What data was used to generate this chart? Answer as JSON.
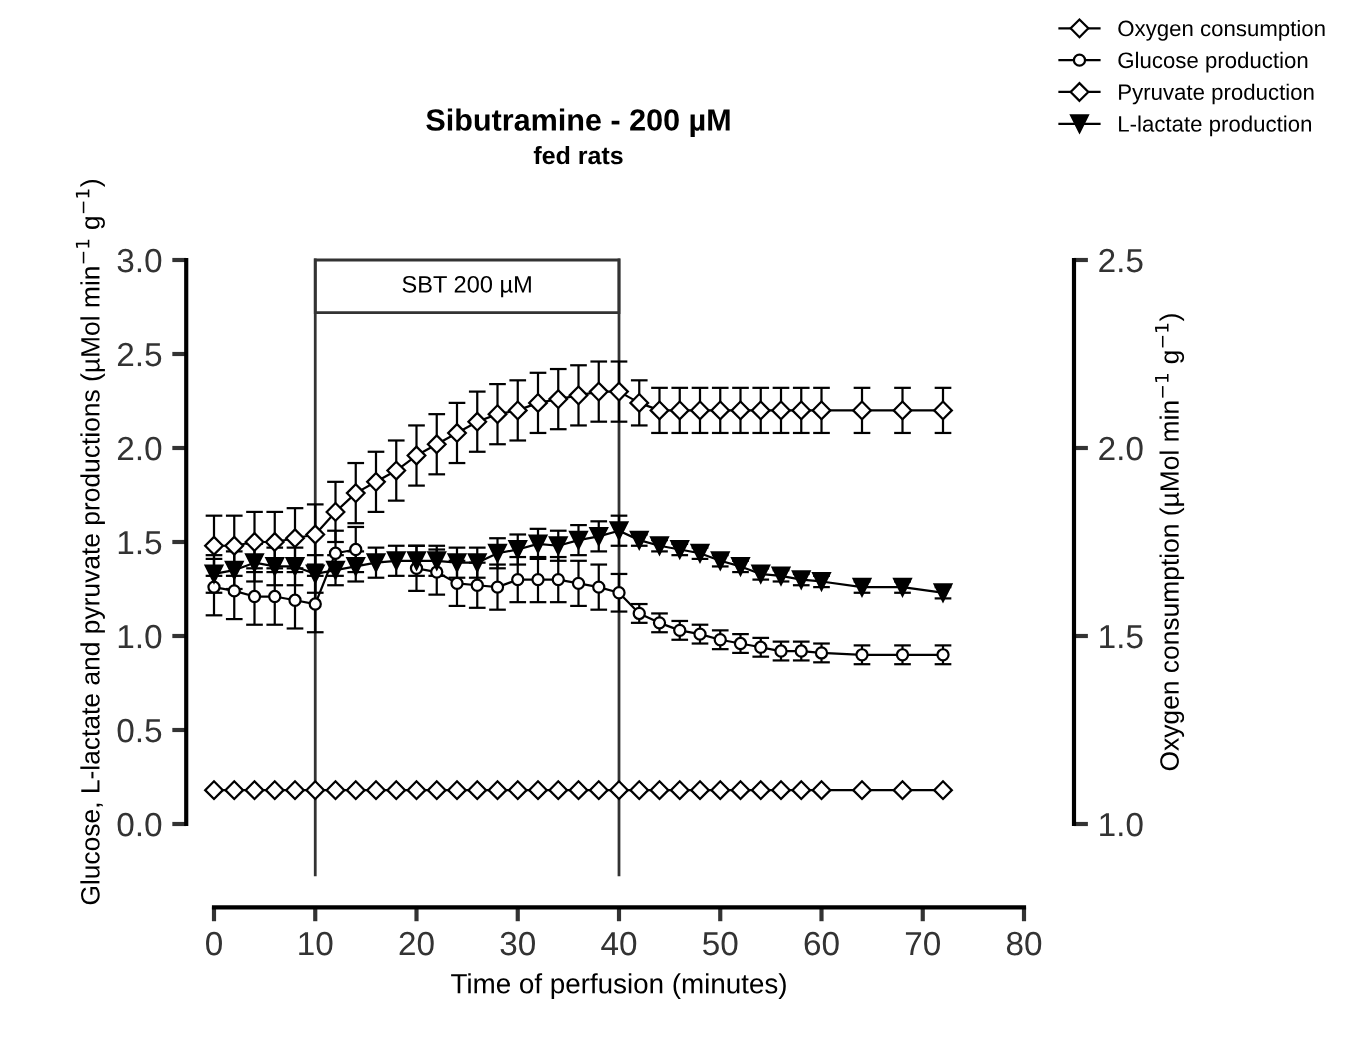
{
  "chart_data": {
    "type": "line",
    "title": "Sibutramine - 200 µM",
    "subtitle": "fed rats",
    "xlabel": "Time of perfusion (minutes)",
    "ylabel": "Glucose, L-lactate and pyruvate productions (µMol min$^{−1}$ g$^{−1}$)",
    "y2label": "Oxygen consumption (µMol min$^{−1}$ g$^{−1}$)",
    "x": [
      0,
      2,
      4,
      6,
      8,
      10,
      12,
      14,
      16,
      18,
      20,
      22,
      24,
      26,
      28,
      30,
      32,
      34,
      36,
      38,
      40,
      42,
      44,
      46,
      48,
      50,
      52,
      54,
      56,
      58,
      60,
      64,
      68,
      72
    ],
    "series": [
      {
        "name": "Oxygen consumption",
        "color": "#000000",
        "marker": "diamond",
        "axis": "y2",
        "values": [
          1.74,
          1.74,
          1.75,
          1.75,
          1.76,
          1.77,
          1.83,
          1.88,
          1.91,
          1.94,
          1.98,
          2.01,
          2.04,
          2.07,
          2.09,
          2.1,
          2.12,
          2.13,
          2.14,
          2.15,
          2.15,
          2.12,
          2.1,
          2.1,
          2.1,
          2.1,
          2.1,
          2.1,
          2.1,
          2.1,
          2.1,
          2.1,
          2.1,
          2.1
        ],
        "errors": [
          0.08,
          0.08,
          0.08,
          0.08,
          0.08,
          0.08,
          0.08,
          0.08,
          0.08,
          0.08,
          0.08,
          0.08,
          0.08,
          0.08,
          0.08,
          0.08,
          0.08,
          0.08,
          0.08,
          0.08,
          0.08,
          0.06,
          0.06,
          0.06,
          0.06,
          0.06,
          0.06,
          0.06,
          0.06,
          0.06,
          0.06,
          0.06,
          0.06,
          0.06
        ]
      },
      {
        "name": "Glucose production",
        "color": "#000000",
        "marker": "circle",
        "values": [
          1.26,
          1.24,
          1.21,
          1.21,
          1.19,
          1.17,
          1.44,
          1.46,
          null,
          null,
          1.36,
          1.34,
          1.28,
          1.27,
          1.26,
          1.3,
          1.3,
          1.3,
          1.28,
          1.26,
          1.23,
          1.12,
          1.07,
          1.03,
          1.01,
          0.98,
          0.96,
          0.94,
          0.92,
          0.92,
          0.91,
          0.9,
          0.9,
          0.9
        ],
        "errors": [
          0.15,
          0.15,
          0.15,
          0.15,
          0.15,
          0.15,
          0.12,
          0.12,
          null,
          null,
          0.12,
          0.12,
          0.12,
          0.12,
          0.12,
          0.12,
          0.12,
          0.12,
          0.12,
          0.12,
          0.1,
          0.05,
          0.05,
          0.05,
          0.05,
          0.05,
          0.05,
          0.05,
          0.05,
          0.05,
          0.05,
          0.05,
          0.05,
          0.05
        ]
      },
      {
        "name": "Pyruvate production",
        "color": "#000000",
        "marker": "diamond",
        "values": [
          0.18,
          0.18,
          0.18,
          0.18,
          0.18,
          0.18,
          0.18,
          0.18,
          0.18,
          0.18,
          0.18,
          0.18,
          0.18,
          0.18,
          0.18,
          0.18,
          0.18,
          0.18,
          0.18,
          0.18,
          0.18,
          0.18,
          0.18,
          0.18,
          0.18,
          0.18,
          0.18,
          0.18,
          0.18,
          0.18,
          0.18,
          0.18,
          0.18,
          0.18
        ]
      },
      {
        "name": "L-lactate production",
        "color": "#000000",
        "marker": "triangle",
        "values": [
          1.33,
          1.35,
          1.39,
          1.37,
          1.37,
          1.33,
          1.35,
          1.37,
          1.39,
          1.4,
          1.4,
          1.4,
          1.39,
          1.39,
          1.44,
          1.46,
          1.49,
          1.48,
          1.51,
          1.53,
          1.56,
          1.51,
          1.48,
          1.46,
          1.44,
          1.4,
          1.37,
          1.33,
          1.32,
          1.3,
          1.29,
          1.26,
          1.26,
          1.23
        ],
        "errors": [
          0.1,
          0.1,
          0.1,
          0.1,
          0.1,
          0.1,
          0.08,
          0.08,
          0.08,
          0.08,
          0.08,
          0.08,
          0.08,
          0.08,
          0.08,
          0.08,
          0.08,
          0.08,
          0.08,
          0.08,
          0.08,
          0.03,
          0.03,
          0.03,
          0.03,
          0.03,
          0.03,
          0.03,
          0.03,
          0.03,
          0.03,
          0.03,
          0.03,
          0.03
        ]
      }
    ],
    "xlim": [
      0,
      80
    ],
    "xticks": [
      0,
      10,
      20,
      30,
      40,
      50,
      60,
      70,
      80
    ],
    "ylim": [
      0,
      3
    ],
    "yticks": [
      {
        "value": 0,
        "label": "0.0"
      },
      {
        "value": 0.5,
        "label": "0.5"
      },
      {
        "value": 1,
        "label": "1.0"
      },
      {
        "value": 1.5,
        "label": "1.5"
      },
      {
        "value": 2,
        "label": "2.0"
      },
      {
        "value": 2.5,
        "label": "2.5"
      },
      {
        "value": 3,
        "label": "3.0"
      }
    ],
    "y2lim": [
      1,
      2.5
    ],
    "y2ticks": [
      {
        "value": 1,
        "label": "1.0"
      },
      {
        "value": 1.5,
        "label": "1.5"
      },
      {
        "value": 2,
        "label": "2.0"
      },
      {
        "value": 2.5,
        "label": "2.5"
      }
    ],
    "ref_lines": [
      {
        "axis": "x",
        "value": 10
      },
      {
        "axis": "x",
        "value": 40
      }
    ],
    "annotations": [
      "SBT 200 µM"
    ],
    "legend": "top right"
  }
}
